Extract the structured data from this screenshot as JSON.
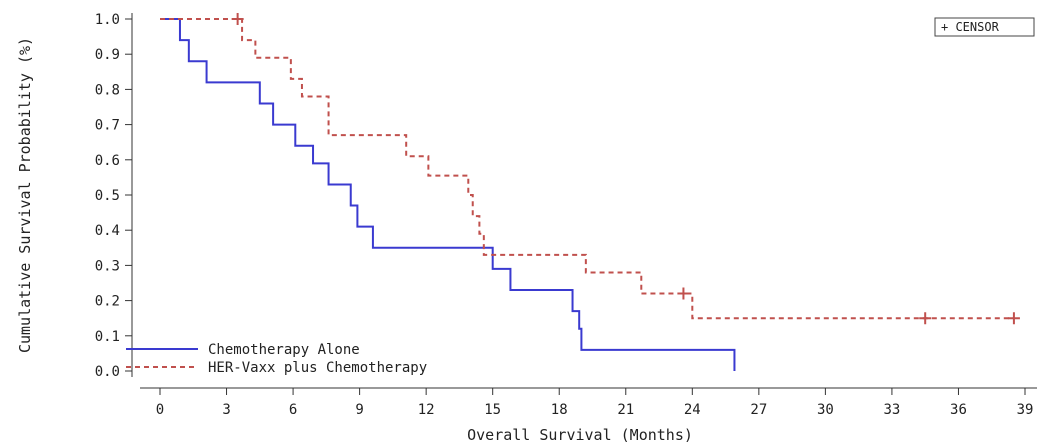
{
  "chart_data": {
    "type": "line",
    "subtype": "kaplan-meier step curve",
    "title": "",
    "xlabel": "Overall Survival (Months)",
    "ylabel": "Cumulative Survival Probability (%)",
    "xlim": [
      0,
      39
    ],
    "ylim": [
      0.0,
      1.0
    ],
    "x_ticks": [
      0,
      3,
      6,
      9,
      12,
      15,
      18,
      21,
      24,
      27,
      30,
      33,
      36,
      39
    ],
    "y_ticks": [
      "0.0",
      "0.1",
      "0.2",
      "0.3",
      "0.4",
      "0.5",
      "0.6",
      "0.7",
      "0.8",
      "0.9",
      "1.0"
    ],
    "grid": false,
    "legend_position": "bottom-left",
    "censor_key": "+ CENSOR",
    "series": [
      {
        "name": "Chemotherapy Alone",
        "color": "#3a3ad0",
        "line_style": "solid",
        "points": [
          [
            0,
            1.0
          ],
          [
            0.9,
            0.94
          ],
          [
            1.3,
            0.88
          ],
          [
            2.1,
            0.82
          ],
          [
            4.5,
            0.76
          ],
          [
            5.1,
            0.7
          ],
          [
            6.1,
            0.64
          ],
          [
            6.9,
            0.59
          ],
          [
            7.6,
            0.53
          ],
          [
            8.6,
            0.47
          ],
          [
            8.9,
            0.41
          ],
          [
            9.6,
            0.35
          ],
          [
            15.0,
            0.29
          ],
          [
            15.8,
            0.23
          ],
          [
            18.6,
            0.17
          ],
          [
            18.9,
            0.12
          ],
          [
            19.0,
            0.06
          ],
          [
            25.9,
            0.0
          ]
        ],
        "censored": []
      },
      {
        "name": "HER-Vaxx plus Chemotherapy",
        "color": "#c0504d",
        "line_style": "dashed",
        "points": [
          [
            0,
            1.0
          ],
          [
            3.7,
            0.94
          ],
          [
            4.3,
            0.89
          ],
          [
            5.9,
            0.83
          ],
          [
            6.4,
            0.78
          ],
          [
            7.6,
            0.67
          ],
          [
            11.1,
            0.61
          ],
          [
            12.1,
            0.555
          ],
          [
            13.9,
            0.5
          ],
          [
            14.1,
            0.44
          ],
          [
            14.4,
            0.39
          ],
          [
            14.6,
            0.33
          ],
          [
            19.2,
            0.28
          ],
          [
            21.7,
            0.22
          ],
          [
            24.0,
            0.15
          ],
          [
            38.5,
            0.15
          ]
        ],
        "censored": [
          [
            3.5,
            1.0
          ],
          [
            23.6,
            0.22
          ],
          [
            34.5,
            0.15
          ],
          [
            38.5,
            0.15
          ]
        ]
      }
    ]
  }
}
